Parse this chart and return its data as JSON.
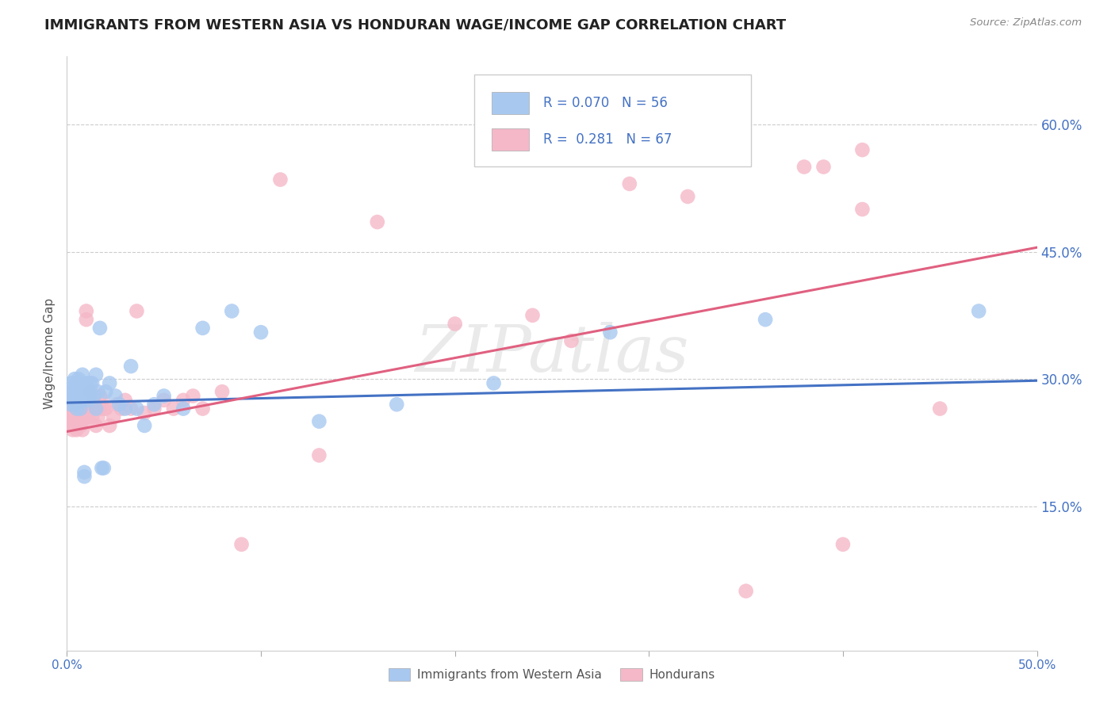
{
  "title": "IMMIGRANTS FROM WESTERN ASIA VS HONDURAN WAGE/INCOME GAP CORRELATION CHART",
  "source": "Source: ZipAtlas.com",
  "ylabel": "Wage/Income Gap",
  "watermark": "ZIPatlas",
  "xlim": [
    0.0,
    0.5
  ],
  "ylim": [
    -0.02,
    0.68
  ],
  "ytick_vals": [
    0.15,
    0.3,
    0.45,
    0.6
  ],
  "ytick_labels": [
    "15.0%",
    "30.0%",
    "45.0%",
    "60.0%"
  ],
  "legend_blue_r": "0.070",
  "legend_blue_n": "56",
  "legend_pink_r": "0.281",
  "legend_pink_n": "67",
  "blue_color": "#a8c8f0",
  "pink_color": "#f5b8c8",
  "trend_blue_color": "#4472c4",
  "trend_pink_color": "#e06080",
  "label_color": "#4472c4",
  "blue_scatter_x": [
    0.001,
    0.002,
    0.002,
    0.003,
    0.003,
    0.003,
    0.004,
    0.004,
    0.004,
    0.005,
    0.005,
    0.005,
    0.006,
    0.006,
    0.006,
    0.007,
    0.007,
    0.008,
    0.008,
    0.008,
    0.009,
    0.009,
    0.01,
    0.01,
    0.011,
    0.011,
    0.012,
    0.012,
    0.013,
    0.014,
    0.015,
    0.015,
    0.016,
    0.017,
    0.018,
    0.019,
    0.02,
    0.022,
    0.025,
    0.027,
    0.03,
    0.033,
    0.036,
    0.04,
    0.045,
    0.05,
    0.06,
    0.07,
    0.085,
    0.1,
    0.13,
    0.17,
    0.22,
    0.28,
    0.36,
    0.47
  ],
  "blue_scatter_y": [
    0.28,
    0.27,
    0.295,
    0.275,
    0.285,
    0.29,
    0.27,
    0.28,
    0.3,
    0.265,
    0.275,
    0.295,
    0.285,
    0.275,
    0.3,
    0.29,
    0.265,
    0.275,
    0.285,
    0.305,
    0.19,
    0.185,
    0.29,
    0.295,
    0.285,
    0.275,
    0.295,
    0.28,
    0.295,
    0.28,
    0.265,
    0.305,
    0.285,
    0.36,
    0.195,
    0.195,
    0.285,
    0.295,
    0.28,
    0.27,
    0.265,
    0.315,
    0.265,
    0.245,
    0.27,
    0.28,
    0.265,
    0.36,
    0.38,
    0.355,
    0.25,
    0.27,
    0.295,
    0.355,
    0.37,
    0.38
  ],
  "pink_scatter_x": [
    0.001,
    0.002,
    0.002,
    0.003,
    0.003,
    0.003,
    0.004,
    0.004,
    0.004,
    0.005,
    0.005,
    0.005,
    0.006,
    0.006,
    0.007,
    0.007,
    0.007,
    0.008,
    0.008,
    0.009,
    0.009,
    0.01,
    0.01,
    0.011,
    0.011,
    0.012,
    0.013,
    0.013,
    0.014,
    0.015,
    0.016,
    0.017,
    0.017,
    0.018,
    0.019,
    0.02,
    0.022,
    0.024,
    0.026,
    0.028,
    0.03,
    0.033,
    0.036,
    0.04,
    0.045,
    0.05,
    0.055,
    0.06,
    0.065,
    0.07,
    0.08,
    0.09,
    0.11,
    0.13,
    0.16,
    0.2,
    0.24,
    0.29,
    0.35,
    0.26,
    0.32,
    0.4,
    0.41,
    0.45,
    0.39,
    0.41,
    0.38
  ],
  "pink_scatter_y": [
    0.265,
    0.255,
    0.245,
    0.26,
    0.25,
    0.24,
    0.255,
    0.245,
    0.26,
    0.255,
    0.24,
    0.25,
    0.265,
    0.245,
    0.255,
    0.26,
    0.245,
    0.25,
    0.24,
    0.255,
    0.265,
    0.38,
    0.37,
    0.265,
    0.255,
    0.285,
    0.265,
    0.255,
    0.275,
    0.245,
    0.255,
    0.28,
    0.265,
    0.275,
    0.265,
    0.265,
    0.245,
    0.255,
    0.27,
    0.265,
    0.275,
    0.265,
    0.38,
    0.26,
    0.265,
    0.275,
    0.265,
    0.275,
    0.28,
    0.265,
    0.285,
    0.105,
    0.535,
    0.21,
    0.485,
    0.365,
    0.375,
    0.53,
    0.05,
    0.345,
    0.515,
    0.105,
    0.57,
    0.265,
    0.55,
    0.5,
    0.55
  ],
  "blue_trend_y_start": 0.272,
  "blue_trend_y_end": 0.298,
  "pink_trend_y_start": 0.238,
  "pink_trend_y_end": 0.455,
  "background_color": "#ffffff",
  "grid_color": "#cccccc",
  "title_fontsize": 13,
  "tick_fontsize": 11,
  "watermark_fontsize": 60
}
